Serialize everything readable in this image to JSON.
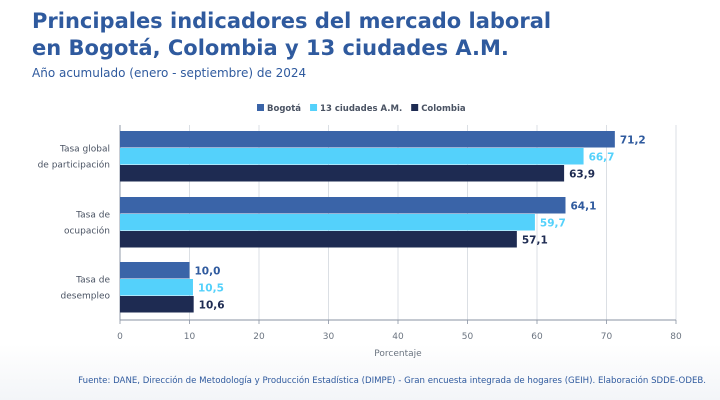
{
  "header": {
    "title_line1": "Principales indicadores del mercado laboral",
    "title_line2": "en Bogotá, Colombia y 13 ciudades A.M.",
    "subtitle": "Año acumulado (enero - septiembre) de 2024"
  },
  "footer": {
    "source": "Fuente: DANE, Dirección de Metodología y Producción Estadística (DIMPE) - Gran encuesta integrada de hogares (GEIH). Elaboración SDDE-ODEB."
  },
  "colors": {
    "bogota": "#3a64a8",
    "ciudades": "#54d1fb",
    "colombia": "#1e2b52",
    "title": "#2f5a9e"
  },
  "chart_data": {
    "type": "bar",
    "orientation": "horizontal",
    "categories": [
      [
        "Tasa global",
        "de participación"
      ],
      [
        "Tasa de",
        "ocupación"
      ],
      [
        "Tasa de",
        "desempleo"
      ]
    ],
    "series": [
      {
        "name": "Bogotá",
        "values": [
          71.2,
          64.1,
          10.0
        ],
        "labels": [
          "71,2",
          "64,1",
          "10,0"
        ],
        "color": "#3a64a8",
        "label_color": "#2f5a9e"
      },
      {
        "name": "13 ciudades A.M.",
        "values": [
          66.7,
          59.7,
          10.5
        ],
        "labels": [
          "66,7",
          "59,7",
          "10,5"
        ],
        "color": "#54d1fb",
        "label_color": "#54d1fb"
      },
      {
        "name": "Colombia",
        "values": [
          63.9,
          57.1,
          10.6
        ],
        "labels": [
          "63,9",
          "57,1",
          "10,6"
        ],
        "color": "#1e2b52",
        "label_color": "#1e2b52"
      }
    ],
    "xlabel": "Porcentaje",
    "xlim": [
      0,
      80
    ],
    "xticks": [
      0,
      10,
      20,
      30,
      40,
      50,
      60,
      70,
      80
    ],
    "grid": true,
    "legend": "top"
  }
}
